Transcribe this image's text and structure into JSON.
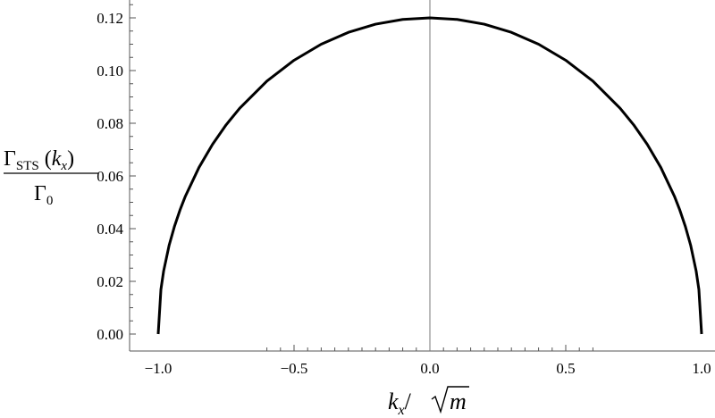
{
  "chart_data": {
    "type": "line",
    "xlim": [
      -1.0,
      1.0
    ],
    "ylim": [
      0.0,
      0.12
    ],
    "x_ticks": [
      {
        "value": -1.0,
        "label": "−1.0"
      },
      {
        "value": -0.5,
        "label": "−0.5"
      },
      {
        "value": 0.0,
        "label": "0.0"
      },
      {
        "value": 0.5,
        "label": "0.5"
      },
      {
        "value": 1.0,
        "label": "1.0"
      }
    ],
    "y_ticks": [
      {
        "value": 0.0,
        "label": "0.00"
      },
      {
        "value": 0.02,
        "label": "0.02"
      },
      {
        "value": 0.04,
        "label": "0.04"
      },
      {
        "value": 0.06,
        "label": "0.06"
      },
      {
        "value": 0.08,
        "label": "0.08"
      },
      {
        "value": 0.1,
        "label": "0.10"
      },
      {
        "value": 0.12,
        "label": "0.12"
      }
    ],
    "grid": false,
    "xlabel": {
      "k": "k",
      "k_sub": "x",
      "slash": "/",
      "m": "m"
    },
    "ylabel": {
      "numer_gamma": "Γ",
      "numer_sub": "STS",
      "numer_arg_open": "(",
      "numer_k": "k",
      "numer_k_sub": "x",
      "numer_arg_close": ")",
      "denom_gamma": "Γ",
      "denom_sub": "0"
    },
    "series": [
      {
        "x": [
          -1.0,
          -0.99,
          -0.98,
          -0.96,
          -0.94,
          -0.92,
          -0.9,
          -0.85,
          -0.8,
          -0.75,
          -0.7,
          -0.6,
          -0.5,
          -0.4,
          -0.3,
          -0.2,
          -0.1,
          0.0,
          0.1,
          0.2,
          0.3,
          0.4,
          0.5,
          0.6,
          0.7,
          0.75,
          0.8,
          0.85,
          0.9,
          0.92,
          0.94,
          0.96,
          0.98,
          0.99,
          1.0
        ],
        "y": [
          0.0,
          0.0169,
          0.0239,
          0.0336,
          0.0409,
          0.047,
          0.0523,
          0.0632,
          0.072,
          0.0794,
          0.0857,
          0.096,
          0.1039,
          0.11,
          0.1145,
          0.1176,
          0.1194,
          0.12,
          0.1194,
          0.1176,
          0.1145,
          0.11,
          0.1039,
          0.096,
          0.0857,
          0.0794,
          0.072,
          0.0632,
          0.0523,
          0.047,
          0.0409,
          0.0336,
          0.0239,
          0.0169,
          0.0
        ]
      }
    ],
    "colors": {
      "curve": "#000000",
      "axis": "#555555",
      "zero_line": "#777777"
    }
  }
}
